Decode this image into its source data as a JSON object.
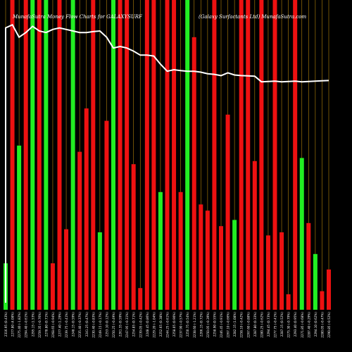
{
  "header": {
    "left": "MunafaSutra Money Flow  Charts for GALAXYSURF",
    "right": "(Galaxy Surfactants Ltd) MunafaSutra.com"
  },
  "colors": {
    "background": "#000000",
    "up": "#22ee22",
    "down": "#ee1111",
    "grid": "#b8860b",
    "line": "#ffffff",
    "label": "#ffffff"
  },
  "chart_data": {
    "type": "bar",
    "title": "MunafaSutra Money Flow  Charts for GALAXYSURF",
    "subtitle": "(Galaxy Surfactants Ltd) MunafaSutra.com",
    "ylim": [
      0,
      100
    ],
    "categories": [
      "2316.95 (0.43%)",
      "2277.80 (4.08%)",
      "2275.40 (-1.82%)",
      "2294.40 (-0.61%)",
      "2295.15 (1.53%)",
      "2259.35 (-0.76%)",
      "2278.80 (0.71%)",
      "2268.65 (-0.94%)",
      "2277.40 (1.29%)",
      "2239.75 (-0.41%)",
      "2248.15 (0.59%)",
      "2235.40 (-0.37%)",
      "2241.25 (0.47%)",
      "2230.40 (-0.83%)",
      "2249.15 (-0.17%)",
      "2253.10 (0.12%)",
      "2250.25 (-0.49%)",
      "2261.35 (0.59%)",
      "2247.95 (-0.31%)",
      "2254.85 (0.71%)",
      "2239.05 (-0.42%)",
      "2248.45 (0.86%)",
      "2229.20 (-1.04%)",
      "2252.65 (0.38%)",
      "2244.25 (-0.61%)",
      "2258.05 (0.90%)",
      "2237.90 (-0.57%)",
      "2250.75 (0.54%)",
      "2238.60 (-1.21%)",
      "2266.15 (0.72%)",
      "2250.05 (-0.39%)",
      "2258.90 (0.55%)",
      "2246.45 (-0.91%)",
      "2267.10 (-0.66%)",
      "2282.15 (1.08%)",
      "2258.10 (-0.42%)",
      "2267.60 (-0.88%)",
      "2287.80 (0.33%)",
      "2280.25 (-0.62%)",
      "2294.45 (0.73%)",
      "2277.75 (-0.41%)",
      "2287.15 (0.52%)",
      "2275.30 (-0.79%)",
      "2293.40 (0.95%)",
      "2271.85 (-0.68%)",
      "2287.40 (-0.29%)",
      "2294.10 (0.62%)",
      "2280.05 (-0.47%)",
      "2290.85 (-0.52%)"
    ],
    "series": [
      {
        "direction": [
          "up",
          "down",
          "up",
          "down",
          "up",
          "down",
          "up",
          "down",
          "down",
          "down",
          "up",
          "down",
          "down",
          "down",
          "up",
          "down",
          "up",
          "down",
          "down",
          "down",
          "down",
          "down",
          "down",
          "up",
          "down",
          "down",
          "down",
          "up",
          "down",
          "down",
          "down",
          "down",
          "down",
          "down",
          "up",
          "down",
          "down",
          "down",
          "down",
          "down",
          "down",
          "down",
          "down",
          "down",
          "up",
          "down",
          "up",
          "down",
          "down"
        ],
        "values": [
          15,
          100,
          53,
          100,
          100,
          100,
          100,
          15,
          100,
          26,
          100,
          51,
          65,
          100,
          25,
          61,
          100,
          100,
          100,
          47,
          7,
          100,
          100,
          38,
          100,
          100,
          38,
          100,
          88,
          34,
          32,
          100,
          27,
          63,
          29,
          100,
          100,
          48,
          100,
          24,
          100,
          25,
          5,
          100,
          49,
          28,
          18,
          6,
          13
        ]
      },
      {
        "values": [
          91,
          92,
          88,
          89.5,
          91.5,
          90,
          89.5,
          90.5,
          91,
          90.5,
          90,
          89.5,
          89.5,
          89.8,
          90,
          88,
          84.5,
          85,
          84.5,
          83.5,
          82.2,
          82.2,
          81.9,
          79.3,
          77,
          77.5,
          77.2,
          77,
          77,
          76.7,
          76.2,
          76,
          75.6,
          76.5,
          75.8,
          75.6,
          75.5,
          75.4,
          73.6,
          73.7,
          73.8,
          73.6,
          73.7,
          73.8,
          73.6,
          73.7,
          73.8,
          73.9,
          74
        ]
      }
    ],
    "grid": true
  }
}
